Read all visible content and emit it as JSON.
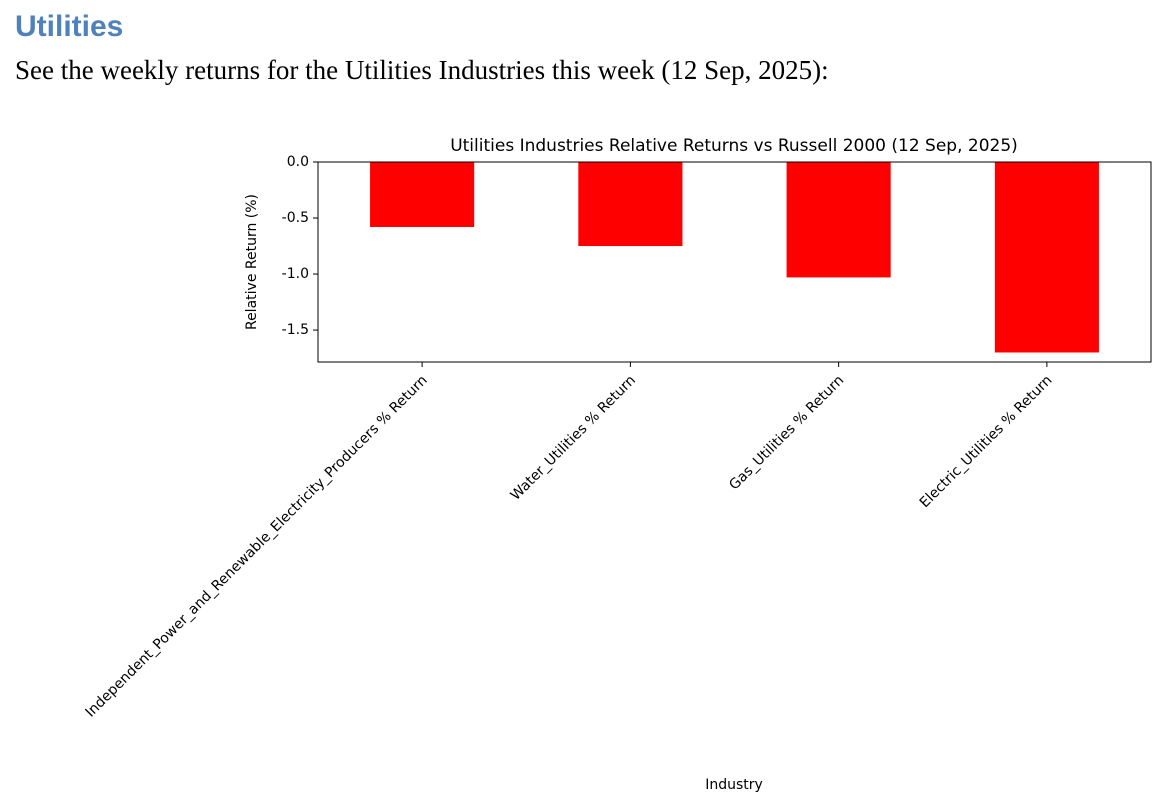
{
  "heading": "Utilities",
  "intro": "See the weekly returns for the Utilities Industries this week (12 Sep, 2025):",
  "chart_data": {
    "type": "bar",
    "title": "Utilities Industries Relative Returns vs Russell 2000 (12 Sep, 2025)",
    "x_label": "Industry",
    "y_label": "Relative Return (%)",
    "categories": [
      "Independent_Power_and_Renewable_Electricity_Producers % Return",
      "Water_Utilities % Return",
      "Gas_Utilities % Return",
      "Electric_Utilities % Return"
    ],
    "values": [
      -0.58,
      -0.75,
      -1.03,
      -1.7
    ],
    "color": "#ff0000",
    "ylim": [
      -1.785,
      0
    ],
    "yticks": [
      {
        "value": 0,
        "label": "0.0"
      },
      {
        "value": -0.5,
        "label": "-0.5"
      },
      {
        "value": -1,
        "label": "-1.0"
      },
      {
        "value": -1.5,
        "label": "-1.5"
      }
    ],
    "grid": false
  }
}
